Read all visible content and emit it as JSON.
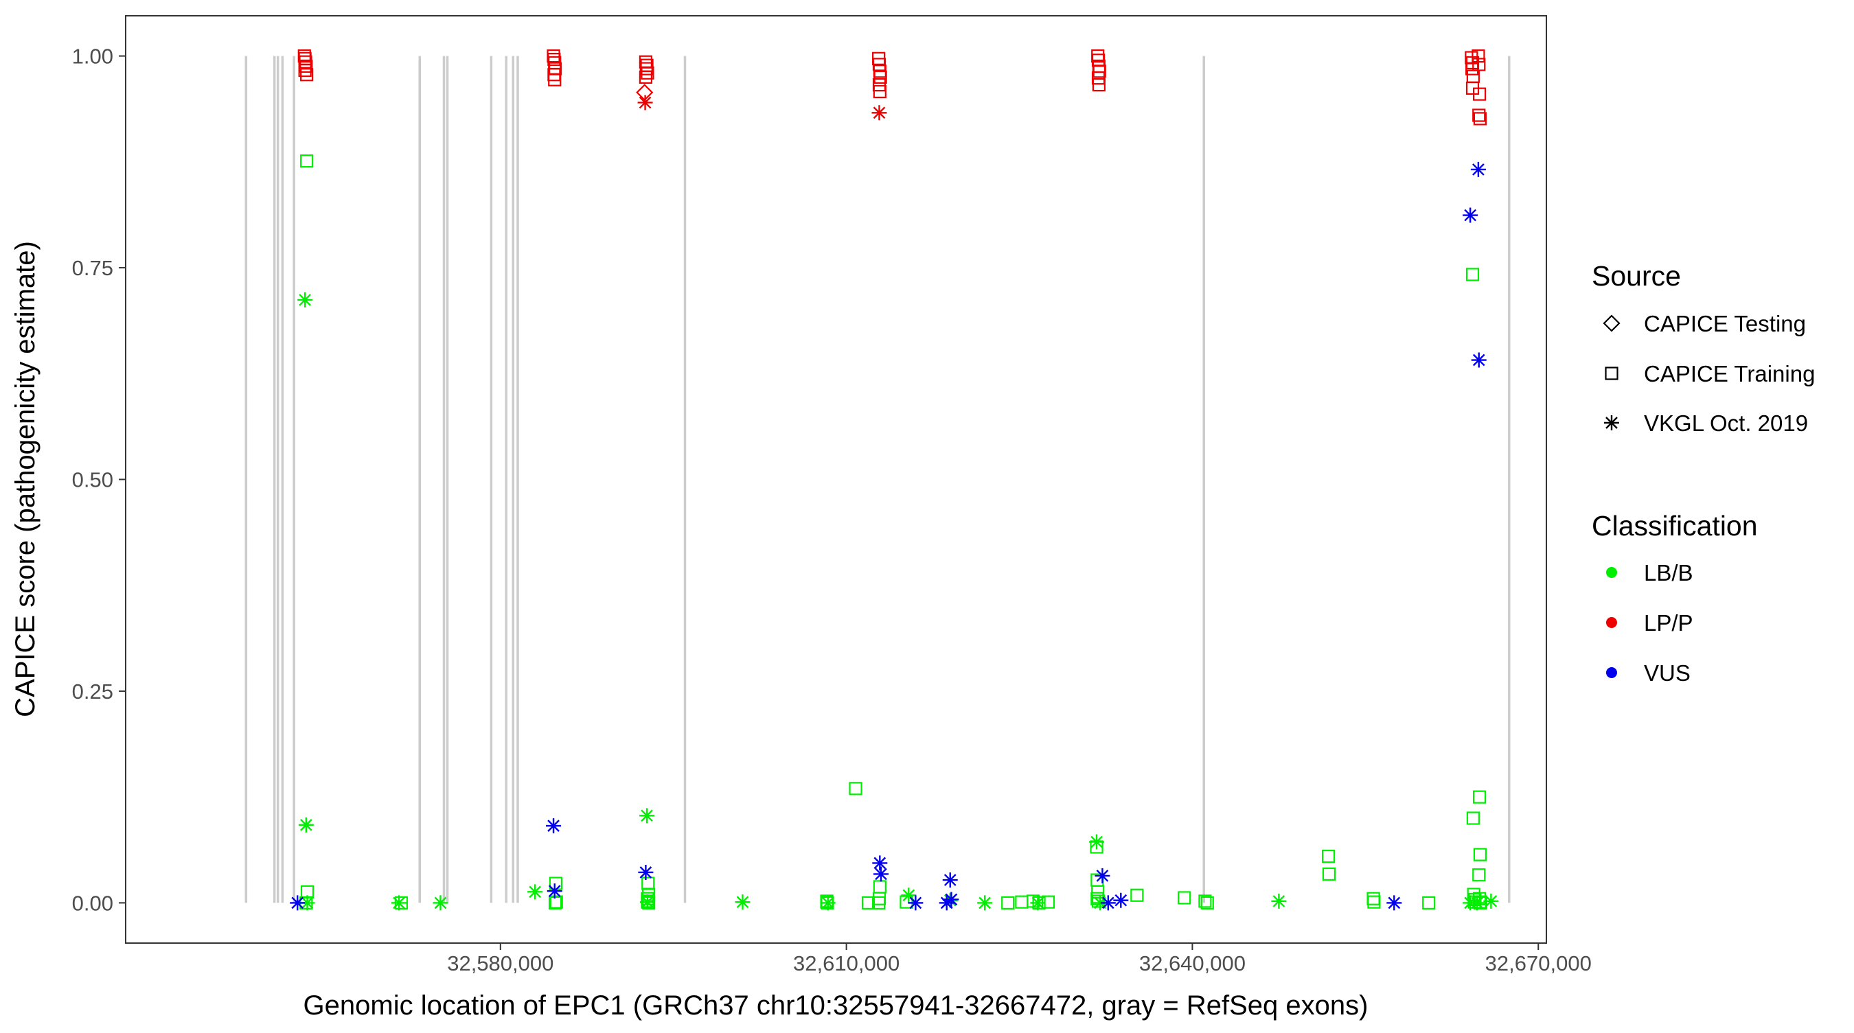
{
  "chart_data": {
    "type": "scatter",
    "title": "",
    "xlabel": "Genomic location of EPC1 (GRCh37 chr10:32557941-32667472, gray = RefSeq exons)",
    "ylabel": "CAPICE score (pathogenicity estimate)",
    "xlim": [
      32547500,
      32670700
    ],
    "ylim": [
      -0.0475,
      1.0475
    ],
    "x_ticks": [
      32580000,
      32610000,
      32640000,
      32670000
    ],
    "x_tick_labels": [
      "32,580,000",
      "32,610,000",
      "32,640,000",
      "32,670,000"
    ],
    "y_ticks": [
      0,
      0.25,
      0.5,
      0.75,
      1.0
    ],
    "y_tick_labels": [
      "0.00",
      "0.25",
      "0.50",
      "0.75",
      "1.00"
    ],
    "grid": false,
    "legend_position": "right",
    "colors": {
      "LB/B": "#00ee00",
      "LP/P": "#ee0000",
      "VUS": "#0000ee",
      "exon": "#cccccc"
    },
    "exons": [
      32557941,
      32560400,
      32560700,
      32561100,
      32562100,
      32573000,
      32575100,
      32575400,
      32579200,
      32580500,
      32581100,
      32581500,
      32596000,
      32641000,
      32667472
    ],
    "legend": {
      "source_title": "Source",
      "source": [
        {
          "label": "CAPICE Testing",
          "shape": "diamond"
        },
        {
          "label": "CAPICE Training",
          "shape": "square"
        },
        {
          "label": "VKGL Oct. 2019",
          "shape": "asterisk"
        }
      ],
      "classification_title": "Classification",
      "classification": [
        {
          "label": "LB/B",
          "color": "#00ee00"
        },
        {
          "label": "LP/P",
          "color": "#ee0000"
        },
        {
          "label": "VUS",
          "color": "#0000ee"
        }
      ]
    },
    "series": [
      {
        "name": "CAPICE Training LP/P",
        "source": "CAPICE Training",
        "classification": "LP/P",
        "x": [
          32563000,
          32563050,
          32563100,
          32563150,
          32563050,
          32563200,
          32584600,
          32584650,
          32584700,
          32584750,
          32584650,
          32584700,
          32592600,
          32592700,
          32592650,
          32592750,
          32592600,
          32612800,
          32612850,
          32612900,
          32612950,
          32612850,
          32612900,
          32631800,
          32631850,
          32631900,
          32631950,
          32631850,
          32631900,
          32664200,
          32664300,
          32664250,
          32664350,
          32664300,
          32664800,
          32664850,
          32664900,
          32664850,
          32664950
        ],
        "y": [
          1.0,
          0.997,
          0.993,
          0.988,
          0.983,
          0.978,
          1.0,
          0.996,
          0.992,
          0.985,
          0.978,
          0.972,
          0.993,
          0.989,
          0.985,
          0.98,
          0.975,
          0.997,
          0.99,
          0.982,
          0.975,
          0.966,
          0.958,
          1.0,
          0.995,
          0.988,
          0.982,
          0.974,
          0.966,
          0.998,
          0.992,
          0.985,
          0.976,
          0.962,
          1.0,
          0.99,
          0.955,
          0.93,
          0.926
        ]
      },
      {
        "name": "CAPICE Testing LP/P",
        "source": "CAPICE Testing",
        "classification": "LP/P",
        "x": [
          32592500
        ],
        "y": [
          0.957
        ]
      },
      {
        "name": "VKGL LP/P",
        "source": "VKGL Oct. 2019",
        "classification": "LP/P",
        "x": [
          32592550,
          32612850
        ],
        "y": [
          0.945,
          0.933
        ]
      },
      {
        "name": "CAPICE Training LB/B",
        "source": "CAPICE Training",
        "classification": "LB/B",
        "x": [
          32563200,
          32563250,
          32563150,
          32571400,
          32584800,
          32584850,
          32584750,
          32592800,
          32592850,
          32592750,
          32592800,
          32592850,
          32592750,
          32608300,
          32608350,
          32608300,
          32610800,
          32611900,
          32612900,
          32612850,
          32612800,
          32615200,
          32624000,
          32625200,
          32626200,
          32626700,
          32627500,
          32631700,
          32631750,
          32631800,
          32631750,
          32631850,
          32635200,
          32639300,
          32641100,
          32641300,
          32651800,
          32651850,
          32655700,
          32655750,
          32660500,
          32664300,
          32664350,
          32664400,
          32664500,
          32664450,
          32664900,
          32664950,
          32664850,
          32664900,
          32664950,
          32665000
        ],
        "y": [
          0.876,
          0.013,
          0.0,
          0.0,
          0.023,
          0.001,
          0.0,
          0.023,
          0.01,
          0.005,
          0.002,
          0.0,
          0.001,
          0.001,
          0.0,
          0.002,
          0.135,
          0.0,
          0.019,
          0.005,
          0.0,
          0.001,
          0.0,
          0.001,
          0.002,
          0.0,
          0.001,
          0.066,
          0.027,
          0.013,
          0.005,
          0.002,
          0.009,
          0.006,
          0.002,
          0.0,
          0.055,
          0.034,
          0.005,
          0.001,
          0.0,
          0.742,
          0.1,
          0.01,
          0.004,
          0.001,
          0.125,
          0.057,
          0.033,
          0.005,
          0.0,
          0.001
        ]
      },
      {
        "name": "VKGL LB/B",
        "source": "VKGL Oct. 2019",
        "classification": "LB/B",
        "x": [
          32563050,
          32563150,
          32563250,
          32571200,
          32574800,
          32583000,
          32592700,
          32592750,
          32601000,
          32608400,
          32615400,
          32619000,
          32622000,
          32626600,
          32631700,
          32632000,
          32647500,
          32664100,
          32664700,
          32665900
        ],
        "y": [
          0.712,
          0.092,
          0.0,
          0.0,
          0.0,
          0.013,
          0.103,
          0.001,
          0.001,
          0.0,
          0.009,
          0.003,
          0.0,
          0.0,
          0.072,
          0.0,
          0.002,
          0.0,
          0.0,
          0.002
        ]
      },
      {
        "name": "VKGL VUS",
        "source": "VKGL Oct. 2019",
        "classification": "VUS",
        "x": [
          32562400,
          32584600,
          32584700,
          32592600,
          32612900,
          32613000,
          32616000,
          32618700,
          32619000,
          32619100,
          32632200,
          32632700,
          32633800,
          32657500,
          32664100,
          32664800,
          32664850
        ],
        "y": [
          0.0,
          0.091,
          0.014,
          0.036,
          0.047,
          0.034,
          0.0,
          0.0,
          0.027,
          0.004,
          0.032,
          0.0,
          0.003,
          0.0,
          0.812,
          0.866,
          0.641
        ]
      }
    ]
  }
}
